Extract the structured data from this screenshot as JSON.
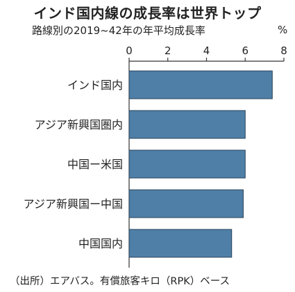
{
  "chart_data": {
    "type": "bar",
    "orientation": "horizontal",
    "title": "インド国内線の成長率は世界トップ",
    "subtitle": "路線別の2019~42年の年平均成長率",
    "unit": "%",
    "categories": [
      "インド国内",
      "アジア新興国圏内",
      "中国ー米国",
      "アジア新興国ー中国",
      "中国国内"
    ],
    "values": [
      7.4,
      6.0,
      6.0,
      5.9,
      5.3
    ],
    "xlim": [
      0,
      8
    ],
    "xticks": [
      "0",
      "2",
      "4",
      "6",
      "8"
    ],
    "grid": false,
    "colors": {
      "bar": "#4f7fa6",
      "bar_edge": "#26425a",
      "axis": "#333333"
    },
    "source": "（出所）エアバス。有償旅客キロ（RPK）ベース"
  }
}
